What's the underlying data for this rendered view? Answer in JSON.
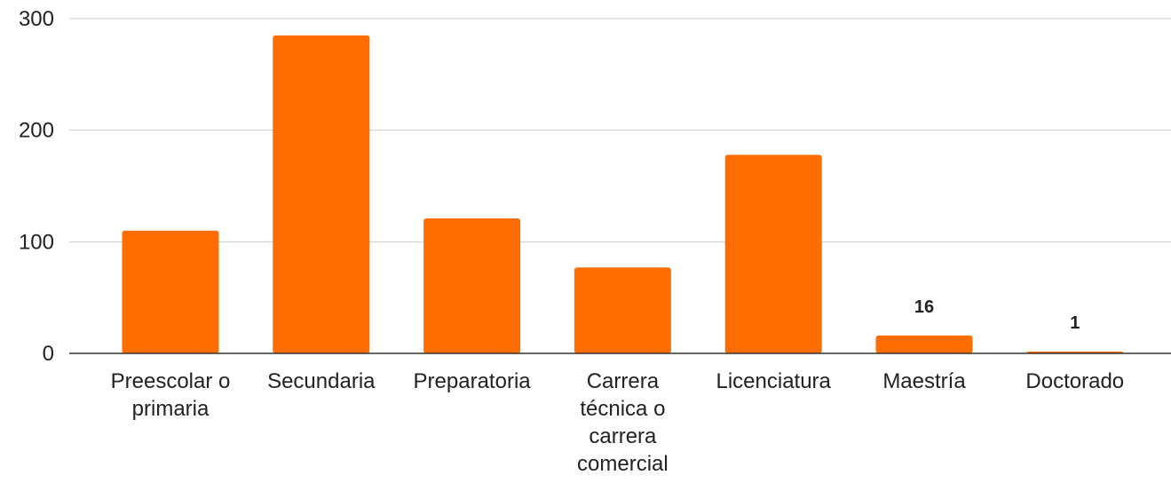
{
  "chart_data": {
    "type": "bar",
    "title": "",
    "xlabel": "",
    "ylabel": "",
    "categories": [
      [
        "Preescolar o",
        "primaria"
      ],
      [
        "Secundaria"
      ],
      [
        "Preparatoria"
      ],
      [
        "Carrera",
        "técnica o",
        "carrera",
        "comercial"
      ],
      [
        "Licenciatura"
      ],
      [
        "Maestría"
      ],
      [
        "Doctorado"
      ]
    ],
    "values": [
      110,
      285,
      121,
      77,
      178,
      16,
      1
    ],
    "data_labels": [
      "",
      "",
      "",
      "",
      "",
      "16",
      "1"
    ],
    "ylim": [
      0,
      300
    ],
    "yticks": [
      0,
      100,
      200,
      300
    ],
    "grid": true,
    "legend": "none",
    "bar_color": "#ff6d01",
    "grid_color": "#cccccc",
    "axis_color": "#333333",
    "text_color": "#222222"
  }
}
